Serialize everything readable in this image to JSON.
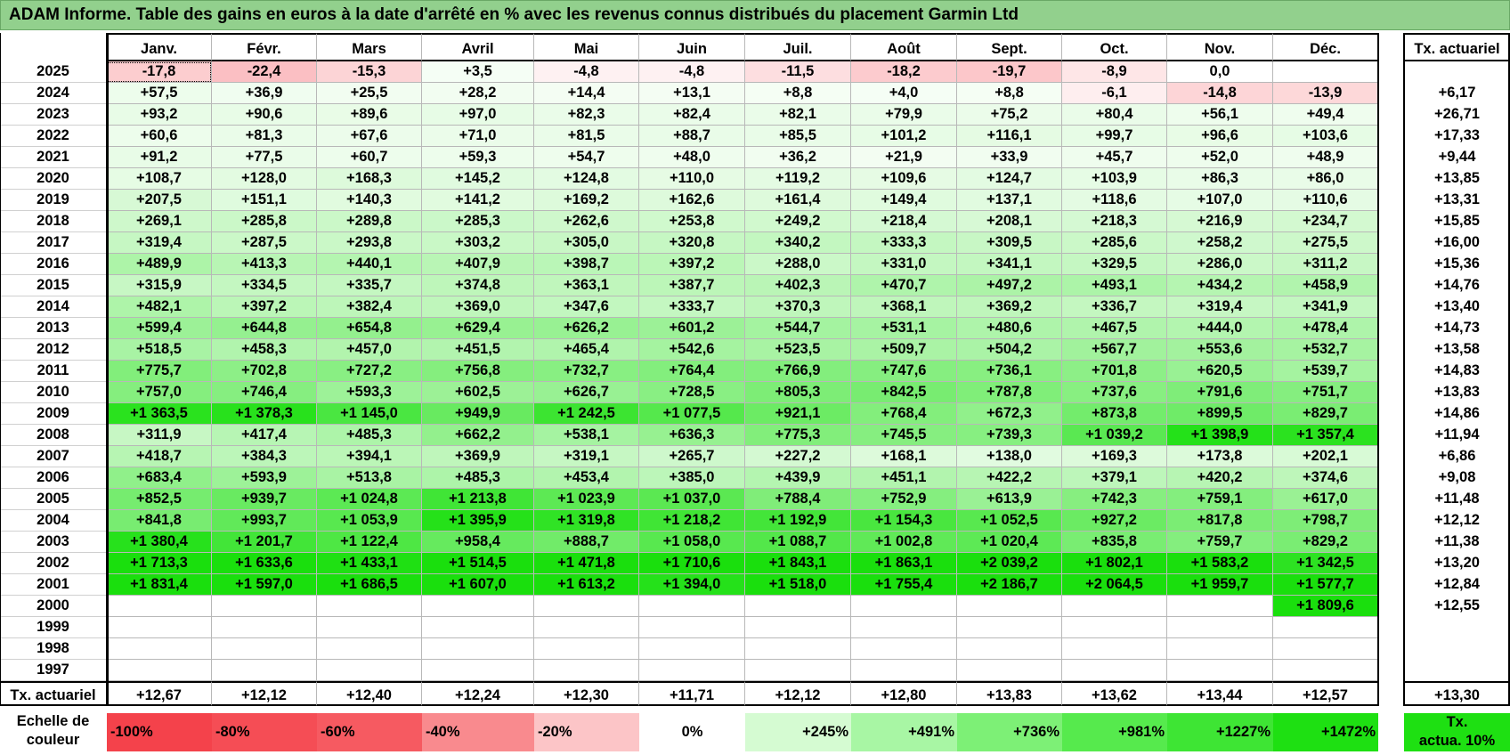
{
  "title": "ADAM Informe. Table des gains en euros à la date d'arrêté en % avec les revenus connus distribués du placement Garmin Ltd",
  "months": [
    "Janv.",
    "Févr.",
    "Mars",
    "Avril",
    "Mai",
    "Juin",
    "Juil.",
    "Août",
    "Sept.",
    "Oct.",
    "Nov.",
    "Déc."
  ],
  "actuarial_header": "Tx. actuariel",
  "rows": [
    {
      "year": "2025",
      "values": [
        "-17,8",
        "-22,4",
        "-15,3",
        "+3,5",
        "-4,8",
        "-4,8",
        "-11,5",
        "-18,2",
        "-19,7",
        "-8,9",
        "0,0",
        ""
      ],
      "rate": ""
    },
    {
      "year": "2024",
      "values": [
        "+57,5",
        "+36,9",
        "+25,5",
        "+28,2",
        "+14,4",
        "+13,1",
        "+8,8",
        "+4,0",
        "+8,8",
        "-6,1",
        "-14,8",
        "-13,9"
      ],
      "rate": "+6,17"
    },
    {
      "year": "2023",
      "values": [
        "+93,2",
        "+90,6",
        "+89,6",
        "+97,0",
        "+82,3",
        "+82,4",
        "+82,1",
        "+79,9",
        "+75,2",
        "+80,4",
        "+56,1",
        "+49,4"
      ],
      "rate": "+26,71"
    },
    {
      "year": "2022",
      "values": [
        "+60,6",
        "+81,3",
        "+67,6",
        "+71,0",
        "+81,5",
        "+88,7",
        "+85,5",
        "+101,2",
        "+116,1",
        "+99,7",
        "+96,6",
        "+103,6"
      ],
      "rate": "+17,33"
    },
    {
      "year": "2021",
      "values": [
        "+91,2",
        "+77,5",
        "+60,7",
        "+59,3",
        "+54,7",
        "+48,0",
        "+36,2",
        "+21,9",
        "+33,9",
        "+45,7",
        "+52,0",
        "+48,9"
      ],
      "rate": "+9,44"
    },
    {
      "year": "2020",
      "values": [
        "+108,7",
        "+128,0",
        "+168,3",
        "+145,2",
        "+124,8",
        "+110,0",
        "+119,2",
        "+109,6",
        "+124,7",
        "+103,9",
        "+86,3",
        "+86,0"
      ],
      "rate": "+13,85"
    },
    {
      "year": "2019",
      "values": [
        "+207,5",
        "+151,1",
        "+140,3",
        "+141,2",
        "+169,2",
        "+162,6",
        "+161,4",
        "+149,4",
        "+137,1",
        "+118,6",
        "+107,0",
        "+110,6"
      ],
      "rate": "+13,31"
    },
    {
      "year": "2018",
      "values": [
        "+269,1",
        "+285,8",
        "+289,8",
        "+285,3",
        "+262,6",
        "+253,8",
        "+249,2",
        "+218,4",
        "+208,1",
        "+218,3",
        "+216,9",
        "+234,7"
      ],
      "rate": "+15,85"
    },
    {
      "year": "2017",
      "values": [
        "+319,4",
        "+287,5",
        "+293,8",
        "+303,2",
        "+305,0",
        "+320,8",
        "+340,2",
        "+333,3",
        "+309,5",
        "+285,6",
        "+258,2",
        "+275,5"
      ],
      "rate": "+16,00"
    },
    {
      "year": "2016",
      "values": [
        "+489,9",
        "+413,3",
        "+440,1",
        "+407,9",
        "+398,7",
        "+397,2",
        "+288,0",
        "+331,0",
        "+341,1",
        "+329,5",
        "+286,0",
        "+311,2"
      ],
      "rate": "+15,36"
    },
    {
      "year": "2015",
      "values": [
        "+315,9",
        "+334,5",
        "+335,7",
        "+374,8",
        "+363,1",
        "+387,7",
        "+402,3",
        "+470,7",
        "+497,2",
        "+493,1",
        "+434,2",
        "+458,9"
      ],
      "rate": "+14,76"
    },
    {
      "year": "2014",
      "values": [
        "+482,1",
        "+397,2",
        "+382,4",
        "+369,0",
        "+347,6",
        "+333,7",
        "+370,3",
        "+368,1",
        "+369,2",
        "+336,7",
        "+319,4",
        "+341,9"
      ],
      "rate": "+13,40"
    },
    {
      "year": "2013",
      "values": [
        "+599,4",
        "+644,8",
        "+654,8",
        "+629,4",
        "+626,2",
        "+601,2",
        "+544,7",
        "+531,1",
        "+480,6",
        "+467,5",
        "+444,0",
        "+478,4"
      ],
      "rate": "+14,73"
    },
    {
      "year": "2012",
      "values": [
        "+518,5",
        "+458,3",
        "+457,0",
        "+451,5",
        "+465,4",
        "+542,6",
        "+523,5",
        "+509,7",
        "+504,2",
        "+567,7",
        "+553,6",
        "+532,7"
      ],
      "rate": "+13,58"
    },
    {
      "year": "2011",
      "values": [
        "+775,7",
        "+702,8",
        "+727,2",
        "+756,8",
        "+732,7",
        "+764,4",
        "+766,9",
        "+747,6",
        "+736,1",
        "+701,8",
        "+620,5",
        "+539,7"
      ],
      "rate": "+14,83"
    },
    {
      "year": "2010",
      "values": [
        "+757,0",
        "+746,4",
        "+593,3",
        "+602,5",
        "+626,7",
        "+728,5",
        "+805,3",
        "+842,5",
        "+787,8",
        "+737,6",
        "+791,6",
        "+751,7"
      ],
      "rate": "+13,83"
    },
    {
      "year": "2009",
      "values": [
        "+1 363,5",
        "+1 378,3",
        "+1 145,0",
        "+949,9",
        "+1 242,5",
        "+1 077,5",
        "+921,1",
        "+768,4",
        "+672,3",
        "+873,8",
        "+899,5",
        "+829,7"
      ],
      "rate": "+14,86"
    },
    {
      "year": "2008",
      "values": [
        "+311,9",
        "+417,4",
        "+485,3",
        "+662,2",
        "+538,1",
        "+636,3",
        "+775,3",
        "+745,5",
        "+739,3",
        "+1 039,2",
        "+1 398,9",
        "+1 357,4"
      ],
      "rate": "+11,94"
    },
    {
      "year": "2007",
      "values": [
        "+418,7",
        "+384,3",
        "+394,1",
        "+369,9",
        "+319,1",
        "+265,7",
        "+227,2",
        "+168,1",
        "+138,0",
        "+169,3",
        "+173,8",
        "+202,1"
      ],
      "rate": "+6,86"
    },
    {
      "year": "2006",
      "values": [
        "+683,4",
        "+593,9",
        "+513,8",
        "+485,3",
        "+453,4",
        "+385,0",
        "+439,9",
        "+451,1",
        "+422,2",
        "+379,1",
        "+420,2",
        "+374,6"
      ],
      "rate": "+9,08"
    },
    {
      "year": "2005",
      "values": [
        "+852,5",
        "+939,7",
        "+1 024,8",
        "+1 213,8",
        "+1 023,9",
        "+1 037,0",
        "+788,4",
        "+752,9",
        "+613,9",
        "+742,3",
        "+759,1",
        "+617,0"
      ],
      "rate": "+11,48"
    },
    {
      "year": "2004",
      "values": [
        "+841,8",
        "+993,7",
        "+1 053,9",
        "+1 395,9",
        "+1 319,8",
        "+1 218,2",
        "+1 192,9",
        "+1 154,3",
        "+1 052,5",
        "+927,2",
        "+817,8",
        "+798,7"
      ],
      "rate": "+12,12"
    },
    {
      "year": "2003",
      "values": [
        "+1 380,4",
        "+1 201,7",
        "+1 122,4",
        "+958,4",
        "+888,7",
        "+1 058,0",
        "+1 088,7",
        "+1 002,8",
        "+1 020,4",
        "+835,8",
        "+759,7",
        "+829,2"
      ],
      "rate": "+11,38"
    },
    {
      "year": "2002",
      "values": [
        "+1 713,3",
        "+1 633,6",
        "+1 433,1",
        "+1 514,5",
        "+1 471,8",
        "+1 710,6",
        "+1 843,1",
        "+1 863,1",
        "+2 039,2",
        "+1 802,1",
        "+1 583,2",
        "+1 342,5"
      ],
      "rate": "+13,20"
    },
    {
      "year": "2001",
      "values": [
        "+1 831,4",
        "+1 597,0",
        "+1 686,5",
        "+1 607,0",
        "+1 613,2",
        "+1 394,0",
        "+1 518,0",
        "+1 755,4",
        "+2 186,7",
        "+2 064,5",
        "+1 959,7",
        "+1 577,7"
      ],
      "rate": "+12,84"
    },
    {
      "year": "2000",
      "values": [
        "",
        "",
        "",
        "",
        "",
        "",
        "",
        "",
        "",
        "",
        "",
        "+1 809,6"
      ],
      "rate": "+12,55"
    },
    {
      "year": "1999",
      "values": [
        "",
        "",
        "",
        "",
        "",
        "",
        "",
        "",
        "",
        "",
        "",
        ""
      ],
      "rate": ""
    },
    {
      "year": "1998",
      "values": [
        "",
        "",
        "",
        "",
        "",
        "",
        "",
        "",
        "",
        "",
        "",
        ""
      ],
      "rate": ""
    },
    {
      "year": "1997",
      "values": [
        "",
        "",
        "",
        "",
        "",
        "",
        "",
        "",
        "",
        "",
        "",
        ""
      ],
      "rate": ""
    }
  ],
  "footer": {
    "label": "Tx. actuariel",
    "values": [
      "+12,67",
      "+12,12",
      "+12,40",
      "+12,24",
      "+12,30",
      "+11,71",
      "+12,12",
      "+12,80",
      "+13,83",
      "+13,62",
      "+13,44",
      "+12,57"
    ],
    "rate": "+13,30"
  },
  "scale": {
    "label_line1": "Echelle de",
    "label_line2": "couleur",
    "steps": [
      {
        "label": "-100%",
        "color": "#f4424b",
        "align": "left"
      },
      {
        "label": "-80%",
        "color": "#f54d55",
        "align": "left"
      },
      {
        "label": "-60%",
        "color": "#f65a61",
        "align": "left"
      },
      {
        "label": "-40%",
        "color": "#f98a8e",
        "align": "left"
      },
      {
        "label": "-20%",
        "color": "#fcc5c7",
        "align": "left"
      },
      {
        "label": "0%",
        "color": "#ffffff",
        "align": "center"
      },
      {
        "label": "+245%",
        "color": "#d5fbd2",
        "align": "right"
      },
      {
        "label": "+491%",
        "color": "#a8f6a4",
        "align": "right"
      },
      {
        "label": "+736%",
        "color": "#7df076",
        "align": "right"
      },
      {
        "label": "+981%",
        "color": "#56ea4d",
        "align": "right"
      },
      {
        "label": "+1227%",
        "color": "#3ee534",
        "align": "right"
      },
      {
        "label": "+1472%",
        "color": "#1ee012",
        "align": "right"
      }
    ],
    "rate_line1": "Tx.",
    "rate_line2": "actua. 10%",
    "rate_color": "#1ee012"
  },
  "colors": {
    "title_bg": "#92d08d",
    "neg_max": "#f4424b",
    "pos_max": "#1ee012"
  }
}
